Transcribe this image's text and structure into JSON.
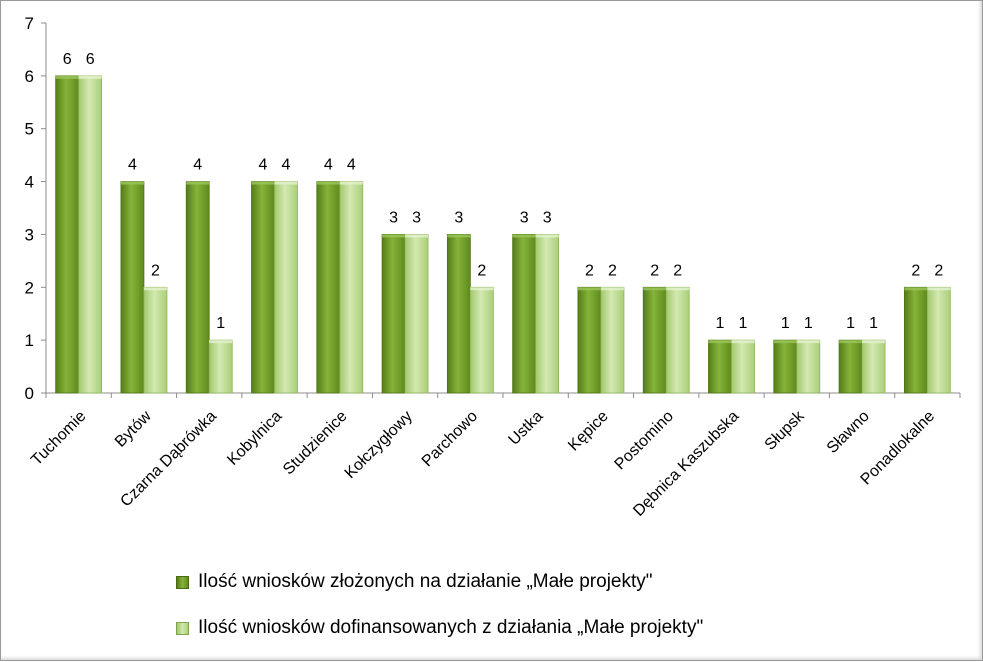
{
  "chart_data": {
    "type": "bar",
    "categories": [
      "Tuchomie",
      "Bytów",
      "Czarna Dąbrówka",
      "Kobylnica",
      "Studzienice",
      "Kołczygłowy",
      "Parchowo",
      "Ustka",
      "Kępice",
      "Postomino",
      "Dębnica Kaszubska",
      "Słupsk",
      "Sławno",
      "Ponadlokalne"
    ],
    "series": [
      {
        "name": "Ilość wniosków złożonych na działanie „Małe projekty\"",
        "values": [
          6,
          4,
          4,
          4,
          4,
          3,
          3,
          3,
          2,
          2,
          1,
          1,
          1,
          2
        ],
        "color": "#6e9b25"
      },
      {
        "name": "Ilość wniosków dofinansowanych z działania „Małe projekty\"",
        "values": [
          6,
          2,
          1,
          4,
          4,
          3,
          2,
          3,
          2,
          2,
          1,
          1,
          1,
          2
        ],
        "color": "#b9d98a"
      }
    ],
    "yticks": [
      "0",
      "1",
      "2",
      "3",
      "4",
      "5",
      "6",
      "7"
    ],
    "ylim": [
      0,
      7
    ],
    "title": "",
    "xlabel": "",
    "ylabel": "",
    "grid": false,
    "legend_position": "bottom"
  }
}
